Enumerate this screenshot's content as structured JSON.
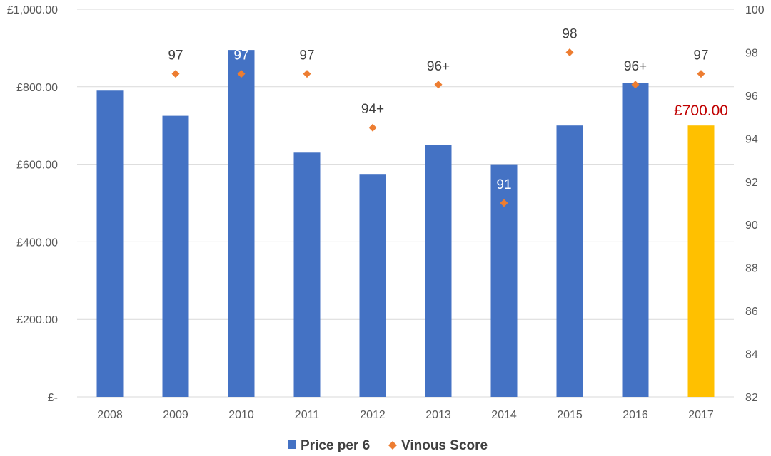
{
  "chart_data": {
    "type": "bar",
    "categories": [
      "2008",
      "2009",
      "2010",
      "2011",
      "2012",
      "2013",
      "2014",
      "2015",
      "2016",
      "2017"
    ],
    "series": [
      {
        "name": "Price per 6",
        "axis": "left",
        "kind": "bar",
        "color": "#4472c4",
        "values": [
          790,
          725,
          895,
          630,
          575,
          650,
          600,
          700,
          810,
          700
        ]
      },
      {
        "name": "Vinous Score",
        "axis": "right",
        "kind": "scatter",
        "marker": "diamond",
        "color": "#ed7d31",
        "values": [
          null,
          97,
          97,
          97,
          94.5,
          96.5,
          91,
          98,
          96.5,
          97
        ],
        "labels": [
          "",
          "97",
          "97",
          "97",
          "94+",
          "96+",
          "91",
          "98",
          "96+",
          "97"
        ]
      }
    ],
    "highlight": {
      "category": "2017",
      "color": "#ffc000",
      "label": "£700.00",
      "label_color": "#c00000"
    },
    "y_left": {
      "min": 0,
      "max": 1000,
      "ticks": [
        0,
        200,
        400,
        600,
        800,
        1000
      ],
      "tick_labels": [
        "£-",
        "£200.00",
        "£400.00",
        "£600.00",
        "£800.00",
        "£1,000.00"
      ]
    },
    "y_right": {
      "min": 82,
      "max": 100,
      "ticks": [
        82,
        84,
        86,
        88,
        90,
        92,
        94,
        96,
        98,
        100
      ]
    },
    "grid": true,
    "legend_position": "bottom",
    "title": "",
    "xlabel": "",
    "ylabel": ""
  }
}
